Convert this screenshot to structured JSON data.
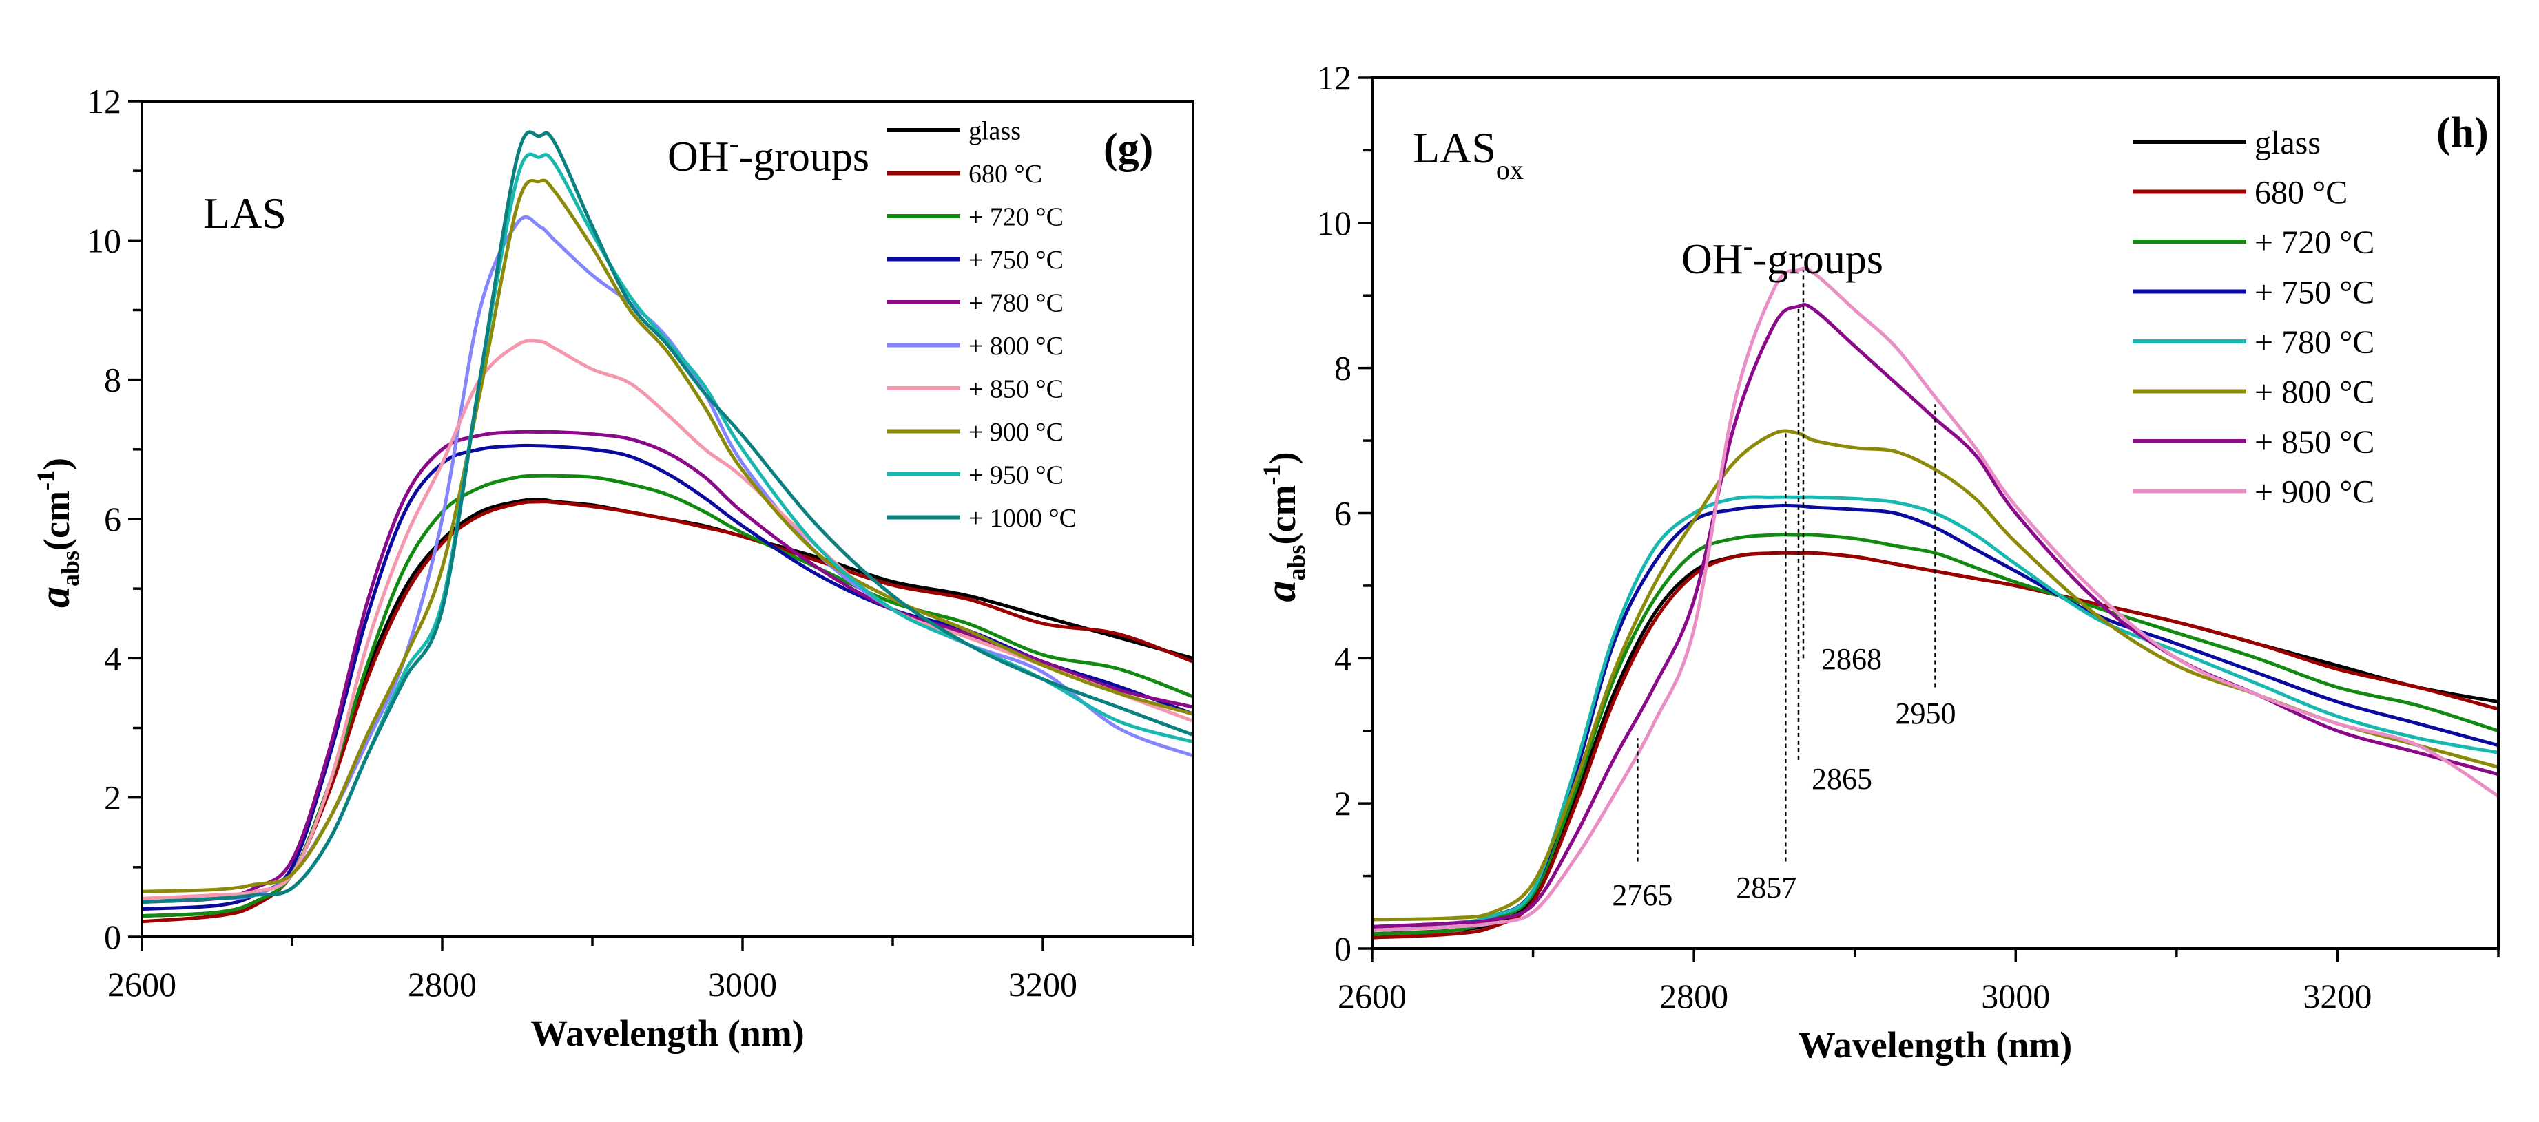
{
  "chart_data": [
    {
      "type": "line",
      "panel_label": "(g)",
      "sample_label": "LAS",
      "sample_sub": "",
      "band_label": "OH",
      "band_sup": "-",
      "band_suffix": "-groups",
      "xlabel": "Wavelength (nm)",
      "ylabel": {
        "main": "a",
        "sub": "abs",
        "open": "(cm",
        "sup": "-1",
        "close": ")"
      },
      "xlim": [
        2600,
        3300
      ],
      "ylim": [
        0,
        12
      ],
      "xticks": [
        "2600",
        "2800",
        "3000",
        "3200"
      ],
      "yticks": [
        "0",
        "2",
        "4",
        "6",
        "8",
        "10",
        "12"
      ],
      "grid": false,
      "legend_position": "top-right",
      "x": [
        2600,
        2650,
        2675,
        2700,
        2725,
        2750,
        2775,
        2800,
        2825,
        2850,
        2865,
        2875,
        2900,
        2925,
        2950,
        2975,
        3000,
        3050,
        3100,
        3150,
        3200,
        3250,
        3300
      ],
      "series": [
        {
          "name": "glass",
          "color": "#000000",
          "values": [
            0.3,
            0.35,
            0.5,
            0.9,
            2.2,
            3.8,
            5.0,
            5.7,
            6.1,
            6.25,
            6.28,
            6.25,
            6.2,
            6.1,
            6.0,
            5.9,
            5.75,
            5.45,
            5.1,
            4.9,
            4.6,
            4.3,
            4.0
          ]
        },
        {
          "name": "680 °C",
          "color": "#9b0000",
          "values": [
            0.22,
            0.3,
            0.45,
            0.9,
            2.1,
            3.7,
            4.9,
            5.65,
            6.05,
            6.22,
            6.25,
            6.24,
            6.18,
            6.1,
            6.0,
            5.88,
            5.75,
            5.4,
            5.05,
            4.85,
            4.5,
            4.35,
            3.95
          ]
        },
        {
          "name": "+ 720 °C",
          "color": "#128a12",
          "values": [
            0.3,
            0.35,
            0.5,
            0.9,
            2.2,
            3.9,
            5.3,
            6.1,
            6.45,
            6.6,
            6.62,
            6.62,
            6.6,
            6.5,
            6.35,
            6.1,
            5.8,
            5.3,
            4.8,
            4.5,
            4.05,
            3.85,
            3.45
          ]
        },
        {
          "name": "+ 750 °C",
          "color": "#0a0a9e",
          "values": [
            0.4,
            0.45,
            0.6,
            1.0,
            2.6,
            4.6,
            6.1,
            6.8,
            7.0,
            7.05,
            7.05,
            7.04,
            7.0,
            6.9,
            6.65,
            6.3,
            5.9,
            5.2,
            4.7,
            4.4,
            3.95,
            3.6,
            3.2
          ]
        },
        {
          "name": "+ 780 °C",
          "color": "#8a0a8a",
          "values": [
            0.5,
            0.55,
            0.7,
            1.1,
            2.7,
            4.8,
            6.3,
            7.0,
            7.2,
            7.25,
            7.25,
            7.25,
            7.22,
            7.15,
            6.95,
            6.6,
            6.1,
            5.3,
            4.7,
            4.35,
            3.95,
            3.55,
            3.3
          ]
        },
        {
          "name": "+ 800 °C",
          "color": "#8484ff",
          "values": [
            0.5,
            0.55,
            0.6,
            0.9,
            1.7,
            2.8,
            4.0,
            6.0,
            9.0,
            10.25,
            10.2,
            10.0,
            9.5,
            9.1,
            8.6,
            7.8,
            6.8,
            5.5,
            4.7,
            4.2,
            3.8,
            3.0,
            2.6
          ]
        },
        {
          "name": "+ 850 °C",
          "color": "#f598ad",
          "values": [
            0.55,
            0.6,
            0.65,
            0.9,
            2.2,
            4.2,
            5.7,
            6.8,
            8.0,
            8.5,
            8.55,
            8.45,
            8.15,
            7.95,
            7.5,
            7.0,
            6.6,
            5.6,
            4.7,
            4.3,
            3.9,
            3.5,
            3.1
          ]
        },
        {
          "name": "+ 900 °C",
          "color": "#8b8a0a",
          "values": [
            0.65,
            0.68,
            0.75,
            0.9,
            1.7,
            2.9,
            4.0,
            5.3,
            7.8,
            10.5,
            10.85,
            10.7,
            9.9,
            9.0,
            8.4,
            7.6,
            6.7,
            5.5,
            4.85,
            4.4,
            3.9,
            3.5,
            3.2
          ]
        },
        {
          "name": "+ 950 °C",
          "color": "#18b8b0",
          "values": [
            0.5,
            0.55,
            0.6,
            0.7,
            1.4,
            2.6,
            3.8,
            4.8,
            8.0,
            10.9,
            11.2,
            11.1,
            10.1,
            9.2,
            8.55,
            7.9,
            7.0,
            5.6,
            4.7,
            4.2,
            3.7,
            3.1,
            2.8
          ]
        },
        {
          "name": "+ 1000 °C",
          "color": "#0a8080",
          "values": [
            0.5,
            0.55,
            0.6,
            0.7,
            1.4,
            2.6,
            3.7,
            4.7,
            8.0,
            11.2,
            11.5,
            11.4,
            10.2,
            9.1,
            8.5,
            7.8,
            7.2,
            5.9,
            4.9,
            4.2,
            3.7,
            3.3,
            2.9
          ]
        }
      ],
      "annotations": []
    },
    {
      "type": "line",
      "panel_label": "(h)",
      "sample_label": "LAS",
      "sample_sub": "ox",
      "band_label": "OH",
      "band_sup": "-",
      "band_suffix": "-groups",
      "xlabel": "Wavelength (nm)",
      "ylabel": {
        "main": "a",
        "sub": "abs",
        "open": "(cm",
        "sup": "-1",
        "close": ")"
      },
      "xlim": [
        2600,
        3300
      ],
      "ylim": [
        0,
        12
      ],
      "xticks": [
        "2600",
        "2800",
        "3000",
        "3200"
      ],
      "yticks": [
        "0",
        "2",
        "4",
        "6",
        "8",
        "10",
        "12"
      ],
      "grid": false,
      "legend_position": "top-right",
      "x": [
        2600,
        2650,
        2675,
        2700,
        2725,
        2750,
        2775,
        2800,
        2825,
        2850,
        2865,
        2875,
        2900,
        2925,
        2950,
        2975,
        3000,
        3050,
        3100,
        3150,
        3200,
        3250,
        3300
      ],
      "series": [
        {
          "name": "glass",
          "color": "#000000",
          "values": [
            0.2,
            0.25,
            0.35,
            0.7,
            2.0,
            3.5,
            4.6,
            5.2,
            5.4,
            5.45,
            5.45,
            5.45,
            5.4,
            5.3,
            5.2,
            5.1,
            5.0,
            4.75,
            4.5,
            4.2,
            3.9,
            3.6,
            3.4
          ]
        },
        {
          "name": "680 °C",
          "color": "#9b0000",
          "values": [
            0.15,
            0.2,
            0.3,
            0.65,
            1.9,
            3.4,
            4.5,
            5.15,
            5.4,
            5.45,
            5.45,
            5.45,
            5.4,
            5.3,
            5.2,
            5.1,
            5.0,
            4.75,
            4.5,
            4.2,
            3.85,
            3.6,
            3.3
          ]
        },
        {
          "name": "+ 720 °C",
          "color": "#128a12",
          "values": [
            0.2,
            0.25,
            0.4,
            0.75,
            2.1,
            3.7,
            4.8,
            5.45,
            5.65,
            5.7,
            5.7,
            5.7,
            5.65,
            5.55,
            5.45,
            5.25,
            5.05,
            4.7,
            4.35,
            4.0,
            3.6,
            3.35,
            3.0
          ]
        },
        {
          "name": "+ 750 °C",
          "color": "#0a0a9e",
          "values": [
            0.3,
            0.35,
            0.45,
            0.8,
            2.3,
            4.2,
            5.3,
            5.9,
            6.05,
            6.1,
            6.1,
            6.08,
            6.05,
            6.0,
            5.8,
            5.5,
            5.2,
            4.6,
            4.2,
            3.8,
            3.4,
            3.1,
            2.8
          ]
        },
        {
          "name": "+ 780 °C",
          "color": "#18b8b0",
          "values": [
            0.3,
            0.35,
            0.45,
            0.8,
            2.4,
            4.3,
            5.5,
            6.0,
            6.2,
            6.22,
            6.22,
            6.22,
            6.2,
            6.15,
            6.0,
            5.7,
            5.3,
            4.55,
            4.1,
            3.65,
            3.2,
            2.9,
            2.7
          ]
        },
        {
          "name": "+ 800 °C",
          "color": "#8b8a0a",
          "values": [
            0.4,
            0.42,
            0.5,
            0.9,
            2.2,
            3.8,
            5.0,
            5.9,
            6.7,
            7.1,
            7.1,
            7.0,
            6.9,
            6.85,
            6.6,
            6.2,
            5.6,
            4.6,
            3.9,
            3.5,
            3.1,
            2.8,
            2.5
          ]
        },
        {
          "name": "+ 850 °C",
          "color": "#8a0a8a",
          "values": [
            0.3,
            0.35,
            0.4,
            0.6,
            1.5,
            2.6,
            3.6,
            4.8,
            7.2,
            8.6,
            8.85,
            8.8,
            8.3,
            7.8,
            7.3,
            6.8,
            6.0,
            4.8,
            4.0,
            3.5,
            3.0,
            2.7,
            2.4
          ]
        },
        {
          "name": "+ 900 °C",
          "color": "#e98fc6",
          "values": [
            0.25,
            0.3,
            0.35,
            0.5,
            1.2,
            2.1,
            3.1,
            4.4,
            7.5,
            9.1,
            9.35,
            9.3,
            8.8,
            8.3,
            7.6,
            6.9,
            6.1,
            4.9,
            4.0,
            3.5,
            3.1,
            2.8,
            2.1
          ]
        }
      ],
      "annotations": [
        {
          "label": "2765",
          "x": 2765,
          "y_from": 1.2,
          "y_to": 2.9,
          "label_x": 2768,
          "label_y": 0.6
        },
        {
          "label": "2857",
          "x": 2857,
          "y_from": 1.2,
          "y_to": 7.1,
          "label_x": 2845,
          "label_y": 0.7
        },
        {
          "label": "2865",
          "x": 2865,
          "y_from": 2.6,
          "y_to": 8.85,
          "label_x": 2892,
          "label_y": 2.2
        },
        {
          "label": "2868",
          "x": 2868,
          "y_from": 4.0,
          "y_to": 9.35,
          "label_x": 2898,
          "label_y": 3.85
        },
        {
          "label": "2950",
          "x": 2950,
          "y_from": 3.6,
          "y_to": 7.5,
          "label_x": 2944,
          "label_y": 3.1
        }
      ]
    }
  ]
}
